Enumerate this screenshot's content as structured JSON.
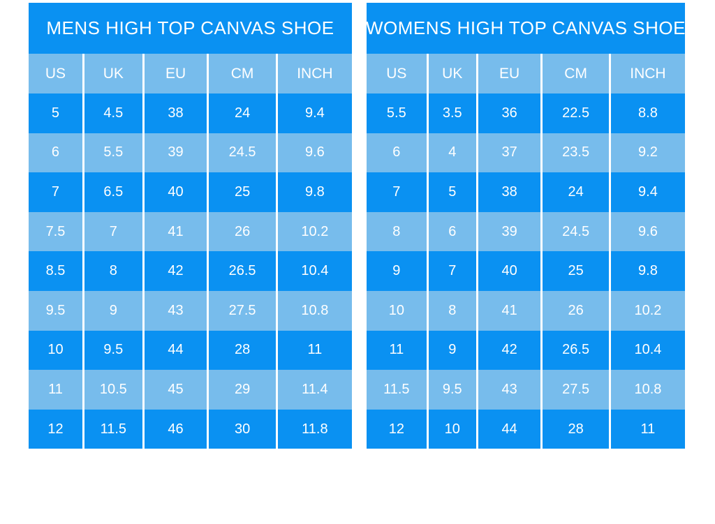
{
  "page": {
    "background": "#ffffff"
  },
  "colors": {
    "row_dark": "#0a91f2",
    "row_light": "#77bcec",
    "text": "#ffffff"
  },
  "chart_data": [
    {
      "type": "table",
      "title": "MENS HIGH TOP CANVAS SHOE",
      "columns": [
        "US",
        "UK",
        "EU",
        "CM",
        "INCH"
      ],
      "rows": [
        [
          "5",
          "4.5",
          "38",
          "24",
          "9.4"
        ],
        [
          "6",
          "5.5",
          "39",
          "24.5",
          "9.6"
        ],
        [
          "7",
          "6.5",
          "40",
          "25",
          "9.8"
        ],
        [
          "7.5",
          "7",
          "41",
          "26",
          "10.2"
        ],
        [
          "8.5",
          "8",
          "42",
          "26.5",
          "10.4"
        ],
        [
          "9.5",
          "9",
          "43",
          "27.5",
          "10.8"
        ],
        [
          "10",
          "9.5",
          "44",
          "28",
          "11"
        ],
        [
          "11",
          "10.5",
          "45",
          "29",
          "11.4"
        ],
        [
          "12",
          "11.5",
          "46",
          "30",
          "11.8"
        ]
      ]
    },
    {
      "type": "table",
      "title": "WOMENS HIGH TOP CANVAS SHOE",
      "columns": [
        "US",
        "UK",
        "EU",
        "CM",
        "INCH"
      ],
      "rows": [
        [
          "5.5",
          "3.5",
          "36",
          "22.5",
          "8.8"
        ],
        [
          "6",
          "4",
          "37",
          "23.5",
          "9.2"
        ],
        [
          "7",
          "5",
          "38",
          "24",
          "9.4"
        ],
        [
          "8",
          "6",
          "39",
          "24.5",
          "9.6"
        ],
        [
          "9",
          "7",
          "40",
          "25",
          "9.8"
        ],
        [
          "10",
          "8",
          "41",
          "26",
          "10.2"
        ],
        [
          "11",
          "9",
          "42",
          "26.5",
          "10.4"
        ],
        [
          "11.5",
          "9.5",
          "43",
          "27.5",
          "10.8"
        ],
        [
          "12",
          "10",
          "44",
          "28",
          "11"
        ]
      ]
    }
  ]
}
